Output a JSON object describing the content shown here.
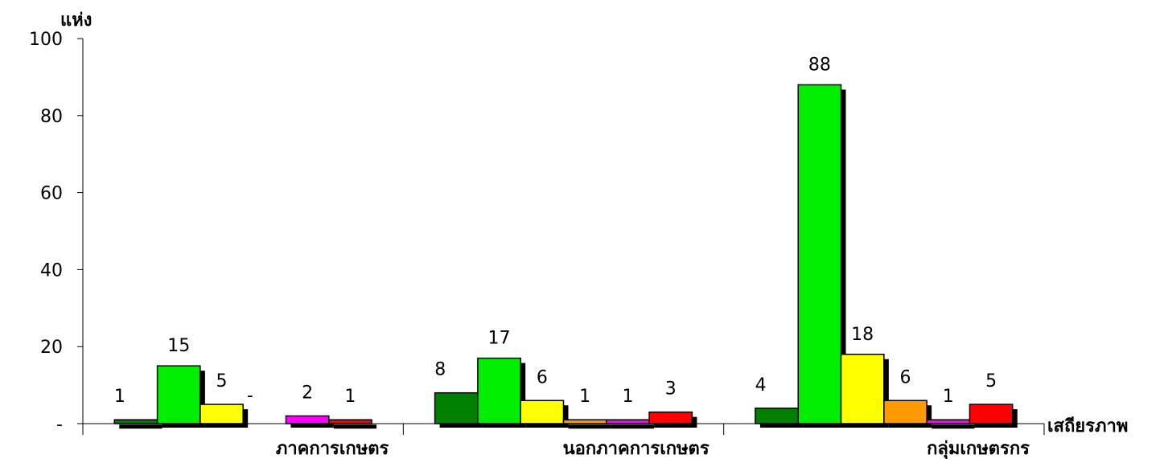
{
  "chart_data": {
    "type": "bar",
    "ylabel": "แห่ง",
    "xlabel": "เสถียรภาพ",
    "ylim": [
      0,
      100
    ],
    "y_ticks": [
      0,
      20,
      40,
      60,
      80,
      100
    ],
    "y_tick_labels": [
      "-",
      "20",
      "40",
      "60",
      "80",
      "100"
    ],
    "categories": [
      "ภาคการเกษตร",
      "นอกภาคการเกษตร",
      "กลุ่มเกษตรกร"
    ],
    "series": [
      {
        "color": "#008000",
        "values": [
          1,
          8,
          4
        ],
        "labels": [
          "1",
          "8",
          "4"
        ]
      },
      {
        "color": "#00ee00",
        "values": [
          15,
          17,
          88
        ],
        "labels": [
          "15",
          "17",
          "88"
        ]
      },
      {
        "color": "#ffff00",
        "values": [
          5,
          6,
          18
        ],
        "labels": [
          "5",
          "6",
          "18"
        ]
      },
      {
        "color": "#ff9900",
        "values": [
          0,
          1,
          6
        ],
        "labels": [
          "-",
          "1",
          "6"
        ]
      },
      {
        "color": "#ff00ff",
        "values": [
          2,
          1,
          1
        ],
        "labels": [
          "2",
          "1",
          "1"
        ]
      },
      {
        "color": "#ff0000",
        "values": [
          1,
          3,
          5
        ],
        "labels": [
          "1",
          "3",
          "5"
        ]
      }
    ],
    "shadow_color": "#000000",
    "grid": false,
    "legend": "none"
  }
}
